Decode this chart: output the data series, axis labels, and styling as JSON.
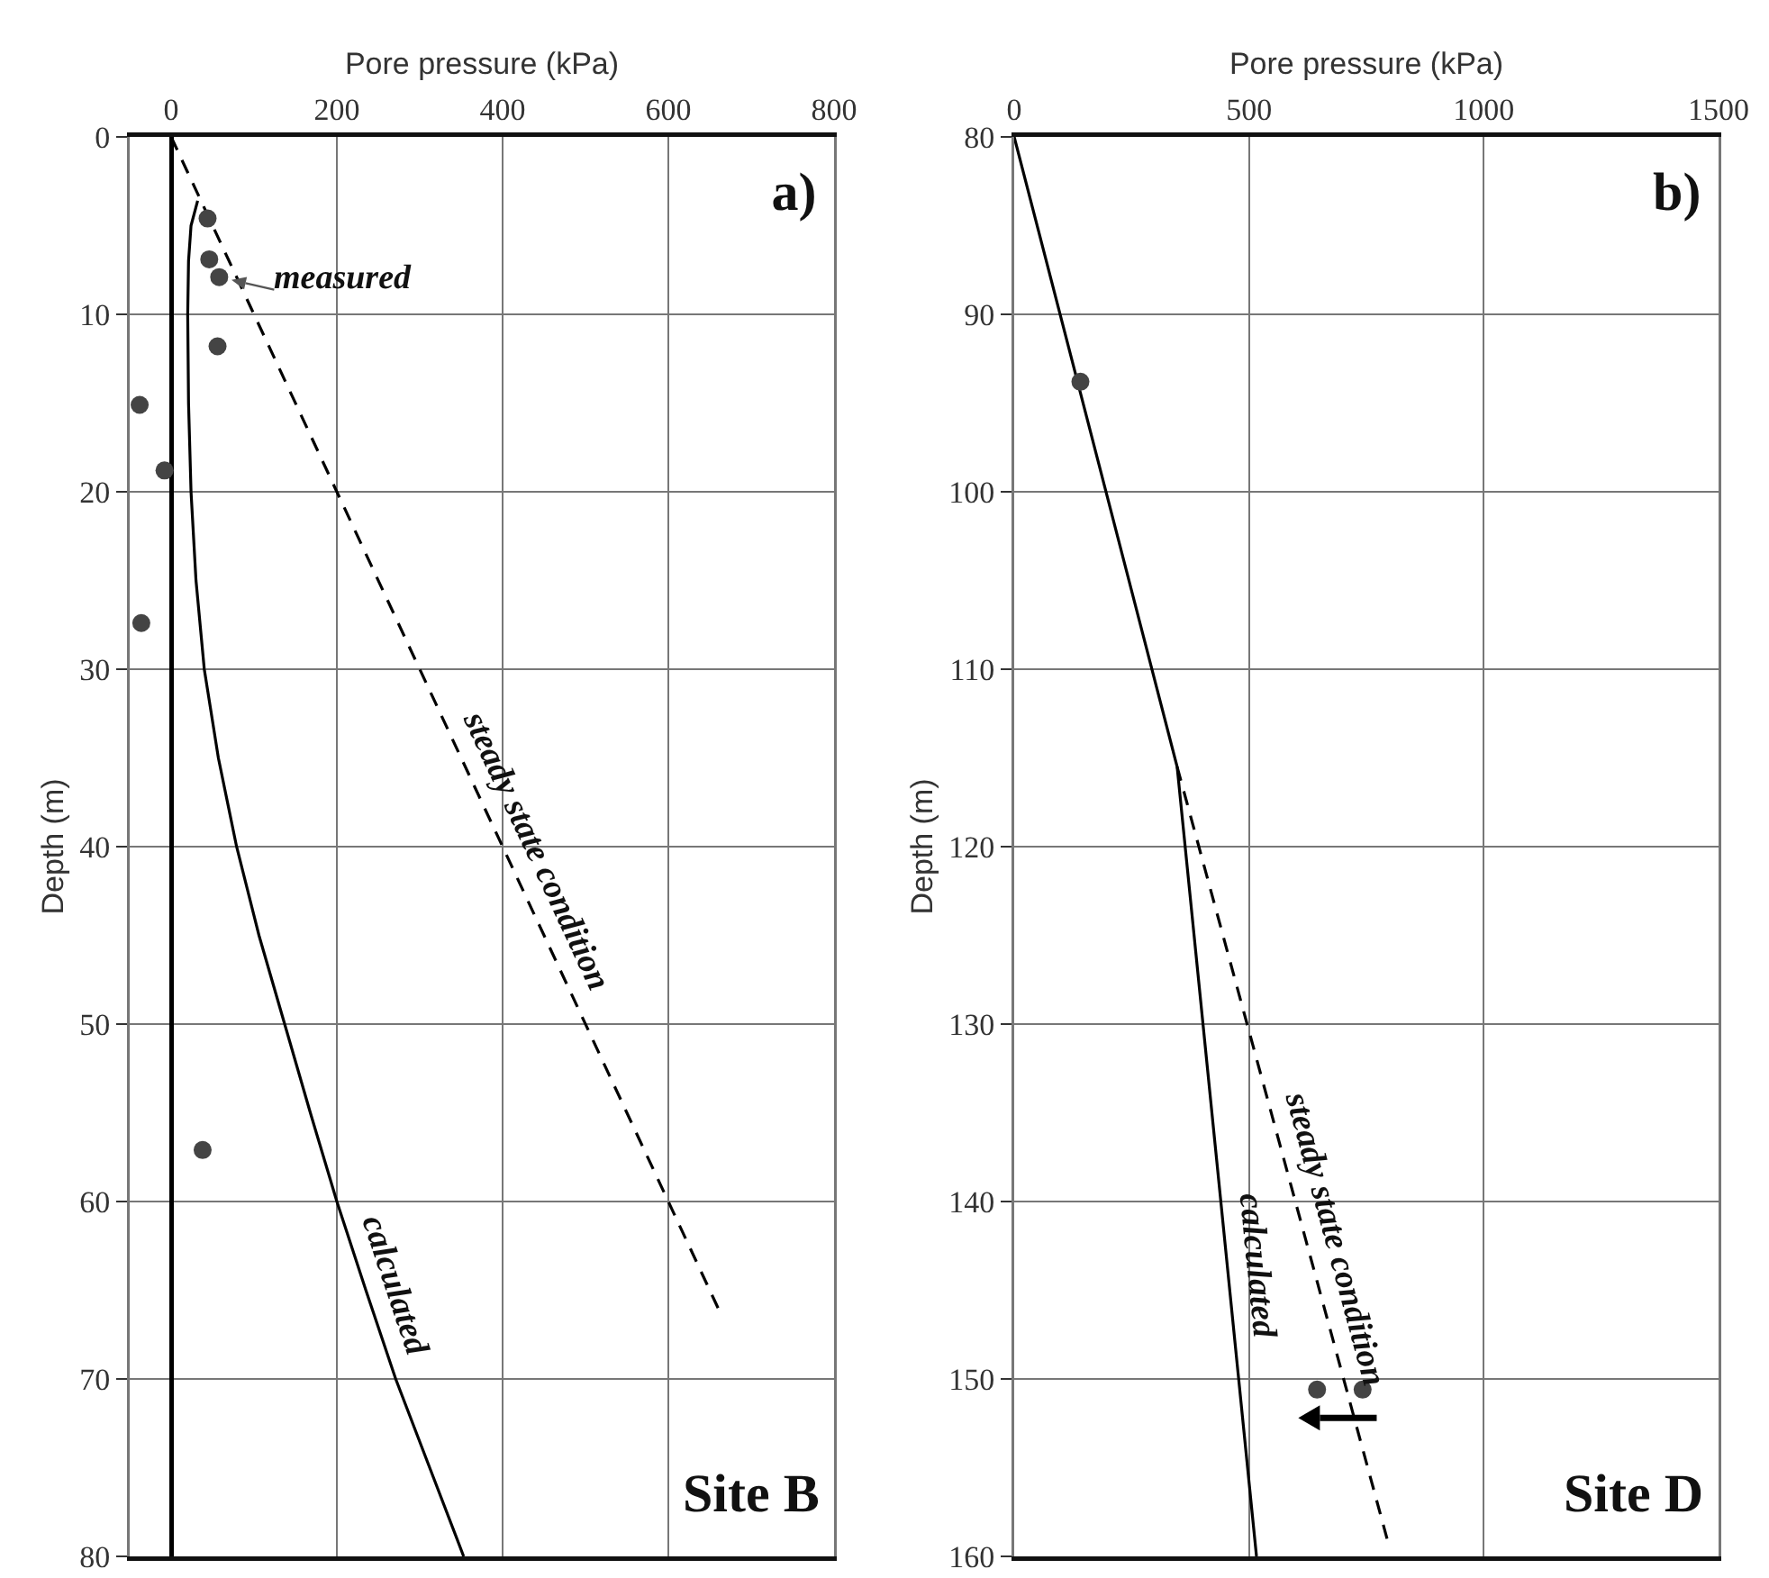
{
  "chart_data": [
    {
      "type": "line",
      "title": "a)",
      "subtitle": "Site B",
      "xlabel": "Pore pressure (kPa)",
      "ylabel": "Depth (m)",
      "xlim": [
        -50,
        800
      ],
      "xticks": [
        0,
        200,
        400,
        600,
        800
      ],
      "ylim": [
        80,
        0
      ],
      "yticks": [
        0,
        10,
        20,
        30,
        40,
        50,
        60,
        70,
        80
      ],
      "grid": true,
      "series": [
        {
          "name": "calculated",
          "color": "#000000",
          "line_style": "solid",
          "x": [
            32,
            24,
            21,
            20,
            21,
            24,
            30,
            40,
            57,
            79,
            106,
            137,
            168,
            200,
            235,
            271,
            312,
            353
          ],
          "values": [
            3.6,
            5,
            7,
            10,
            15,
            20,
            25,
            30,
            35,
            40,
            45,
            50,
            55,
            60,
            65,
            70,
            75,
            80
          ]
        },
        {
          "name": "steady state condition",
          "color": "#000000",
          "line_style": "dashed",
          "x": [
            0,
            660
          ],
          "values": [
            0,
            66
          ]
        },
        {
          "type": "scatter",
          "color": "#444444",
          "marker": "circle",
          "x": [
            44,
            46,
            58,
            56,
            -38,
            -8,
            -36,
            38
          ],
          "values": [
            4.6,
            6.9,
            7.9,
            11.8,
            15.1,
            18.8,
            27.4,
            57.1
          ]
        }
      ],
      "annotations": [
        "measured"
      ]
    },
    {
      "type": "line",
      "title": "b)",
      "subtitle": "Site D",
      "xlabel": "Pore pressure (kPa)",
      "ylabel": "Depth (m)",
      "xlim": [
        0,
        1500
      ],
      "xticks": [
        0,
        500,
        1000,
        1500
      ],
      "ylim": [
        160,
        80
      ],
      "yticks": [
        80,
        90,
        100,
        110,
        120,
        130,
        140,
        150,
        160
      ],
      "grid": true,
      "series": [
        {
          "name": "calculated",
          "color": "#000000",
          "line_style": "solid",
          "x": [
            0,
            347,
            516
          ],
          "values": [
            80,
            115.5,
            160
          ]
        },
        {
          "name": "steady state condition",
          "color": "#000000",
          "line_style": "dashed",
          "x": [
            347,
            794
          ],
          "values": [
            115.5,
            159
          ]
        },
        {
          "type": "scatter",
          "color": "#444444",
          "marker": "circle",
          "x": [
            141,
            645,
            742
          ],
          "values": [
            93.8,
            150.6,
            150.6
          ]
        }
      ]
    }
  ]
}
